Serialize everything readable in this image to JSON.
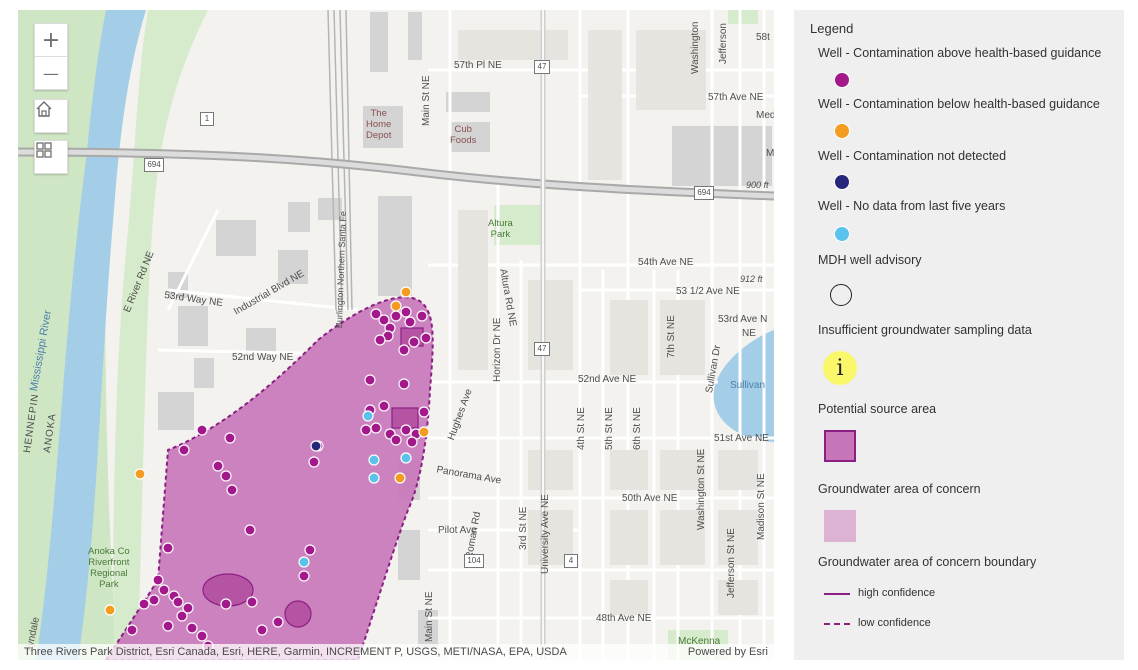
{
  "map": {
    "labels": {
      "river": "Mississippi River",
      "hennepin": "HENNEPIN",
      "anoka": "ANOKA",
      "park": "Anoka Co\nRiverfront\nRegional\nPark",
      "lyndale": "Lyndale",
      "e_river_rd": "E River Rd NE",
      "w53": "53rd Way NE",
      "industrial": "Industrial Blvd NE",
      "w52": "52nd Way NE",
      "bnsf": "Burlington Northern Santa Fe",
      "main_st": "Main St NE",
      "main_st2": "Main St NE",
      "home_depot": "The\nHome\nDepot",
      "cub": "Cub\nFoods",
      "pl57": "57th Pl NE",
      "ave57": "57th Ave NE",
      "altura_park": "Altura\nPark",
      "altura_rd": "Altura Rd NE",
      "ave54": "54th Ave NE",
      "ave53h": "53 1/2 Ave NE",
      "ave53": "53rd Ave N",
      "ave52": "52nd Ave NE",
      "ave51": "51st Ave NE",
      "ave50": "50th Ave NE",
      "ave48": "48th Ave NE",
      "panorama": "Panorama Ave",
      "pilot": "Pilot Ave",
      "hughes": "Hughes Ave",
      "horizon": "Horizon Dr NE",
      "roman": "Roman Rd",
      "st3": "3rd St NE",
      "university": "University Ave NE",
      "st4": "4th St NE",
      "st5": "5th St NE",
      "st6": "6th St NE",
      "st7": "7th St NE",
      "sullivan_dr": "Sullivan Dr",
      "washington": "Washington St NE",
      "washington2": "Washington",
      "jefferson": "Jefferson St NE",
      "jefferson2": "Jefferson",
      "madison": "Madison St NE",
      "sullivan_lake": "Sullivan",
      "mckenna": "McKenna",
      "ft900": "900 ft",
      "ft912": "912 ft",
      "st58": "58t",
      "med": "Med",
      "ne": "NE",
      "m": "M",
      "hw1": "1",
      "hw47a": "47",
      "hw47b": "47",
      "hw694a": "694",
      "hw694b": "694",
      "hw104": "104",
      "hw4": "4"
    },
    "zoom_in": "+",
    "zoom_out": "—",
    "home_icon": "home-icon",
    "basemap_icon": "basemap-gallery-icon",
    "attribution": "Three Rivers Park District, Esri Canada, Esri, HERE, Garmin, INCREMENT P, USGS, METI/NASA, EPA, USDA",
    "powered": "Powered by Esri"
  },
  "legend": {
    "title": "Legend",
    "items": [
      "Well - Contamination above health-based guidance",
      "Well - Contamination below health-based guidance",
      "Well - Contamination not detected",
      "Well - No data from last five years",
      "MDH well advisory",
      "Insufficient groundwater sampling data",
      "Potential source area",
      "Groundwater area of concern",
      "Groundwater area of concern boundary"
    ],
    "info_symbol": "i",
    "high": "high confidence",
    "low": "low confidence"
  },
  "colors": {
    "above": "#a3198c",
    "below": "#f39c1f",
    "not_detected": "#26267a",
    "no_data": "#5bc2eb",
    "area": "#c675b8",
    "boundary": "#8b1f84",
    "source": "#b654a4"
  }
}
